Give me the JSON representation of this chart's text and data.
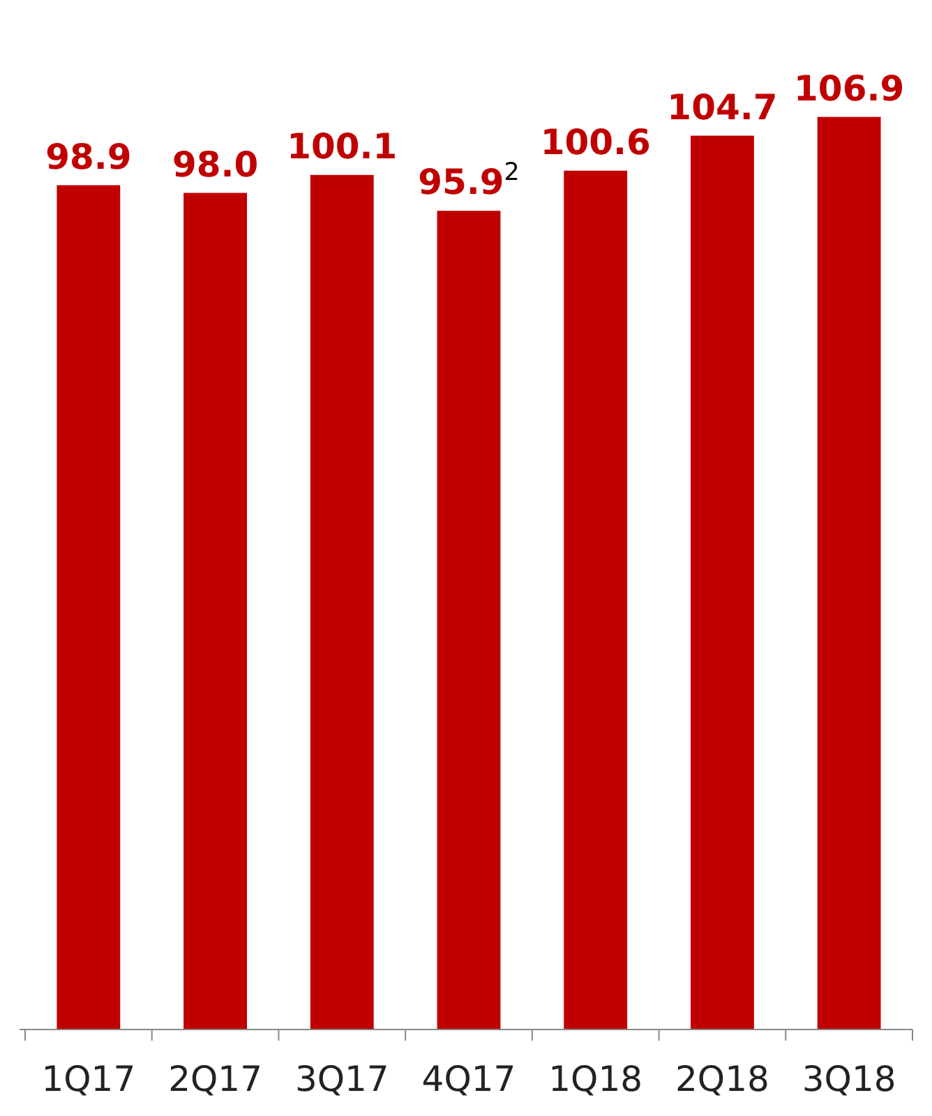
{
  "chart_data": {
    "type": "bar",
    "categories": [
      "1Q17",
      "2Q17",
      "3Q17",
      "4Q17",
      "1Q18",
      "2Q18",
      "3Q18"
    ],
    "values": [
      98.9,
      98.0,
      100.1,
      95.9,
      100.6,
      104.7,
      106.9
    ],
    "value_labels": [
      "98.9",
      "98.0",
      "100.1",
      "95.9$^{2}$",
      "100.6",
      "104.7",
      "106.9"
    ],
    "color": "#c00000"
  }
}
